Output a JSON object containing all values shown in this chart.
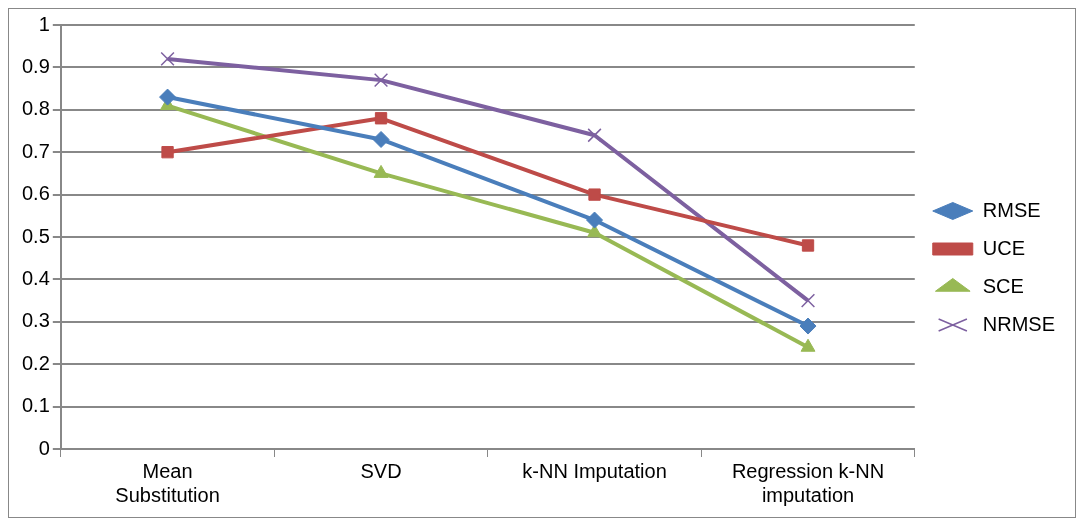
{
  "chart_data": {
    "type": "line",
    "categories": [
      "Mean Substitution",
      "SVD",
      "k-NN Imputation",
      "Regression k-NN imputation"
    ],
    "series": [
      {
        "name": "RMSE",
        "color": "#4a7ebb",
        "marker": "diamond",
        "values": [
          0.83,
          0.73,
          0.54,
          0.29
        ]
      },
      {
        "name": "UCE",
        "color": "#be4b48",
        "marker": "square",
        "values": [
          0.7,
          0.78,
          0.6,
          0.48
        ]
      },
      {
        "name": "SCE",
        "color": "#98b954",
        "marker": "triangle",
        "values": [
          0.81,
          0.65,
          0.51,
          0.24
        ]
      },
      {
        "name": "NRMSE",
        "color": "#7d60a0",
        "marker": "cross",
        "values": [
          0.92,
          0.87,
          0.74,
          0.35
        ]
      }
    ],
    "ylim": [
      0,
      1
    ],
    "yticks": [
      0,
      0.1,
      0.2,
      0.3,
      0.4,
      0.5,
      0.6,
      0.7,
      0.8,
      0.9,
      1
    ],
    "grid": "y",
    "legend": "right",
    "line_style": "solid"
  }
}
